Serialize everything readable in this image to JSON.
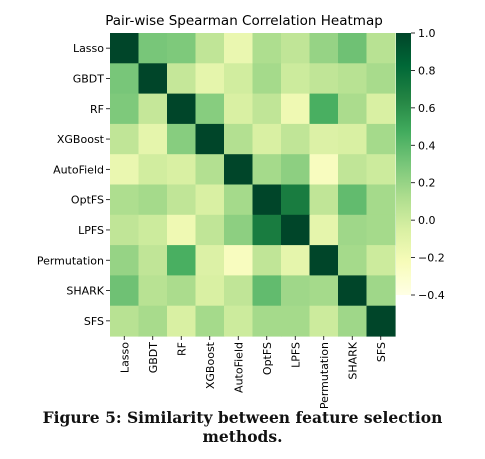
{
  "chart_data": {
    "type": "heatmap",
    "title": "Pair-wise Spearman Correlation Heatmap",
    "rows": [
      "Lasso",
      "GBDT",
      "RF",
      "XGBoost",
      "AutoField",
      "OptFS",
      "LPFS",
      "Permutation",
      "SHARK",
      "SFS"
    ],
    "cols": [
      "Lasso",
      "GBDT",
      "RF",
      "XGBoost",
      "AutoField",
      "OptFS",
      "LPFS",
      "Permutation",
      "SHARK",
      "SFS"
    ],
    "values": [
      [
        1.0,
        0.3,
        0.28,
        0.05,
        -0.15,
        0.12,
        0.05,
        0.2,
        0.33,
        0.08
      ],
      [
        0.3,
        1.0,
        0.03,
        -0.12,
        -0.02,
        0.15,
        0.0,
        0.05,
        0.08,
        0.14
      ],
      [
        0.28,
        0.03,
        1.0,
        0.25,
        -0.05,
        0.05,
        -0.18,
        0.45,
        0.13,
        -0.05
      ],
      [
        0.05,
        -0.12,
        0.25,
        1.0,
        0.1,
        -0.05,
        0.05,
        -0.07,
        -0.05,
        0.15
      ],
      [
        -0.15,
        -0.02,
        -0.05,
        0.1,
        1.0,
        0.15,
        0.23,
        -0.25,
        0.05,
        0.0
      ],
      [
        0.12,
        0.15,
        0.05,
        -0.05,
        0.15,
        1.0,
        0.7,
        0.05,
        0.37,
        0.15
      ],
      [
        0.05,
        0.0,
        -0.18,
        0.05,
        0.23,
        0.7,
        1.0,
        -0.12,
        0.17,
        0.15
      ],
      [
        0.2,
        0.05,
        0.45,
        -0.07,
        -0.25,
        0.05,
        -0.12,
        1.0,
        0.15,
        0.0
      ],
      [
        0.33,
        0.08,
        0.13,
        -0.05,
        0.05,
        0.37,
        0.17,
        0.15,
        1.0,
        0.17
      ],
      [
        0.08,
        0.14,
        -0.05,
        0.15,
        0.0,
        0.15,
        0.15,
        0.0,
        0.17,
        1.0
      ]
    ],
    "colorbar": {
      "min": -0.4,
      "max": 1.0,
      "ticks": [
        "1.0",
        "0.8",
        "0.6",
        "0.4",
        "0.2",
        "0.0",
        "−0.2",
        "−0.4"
      ],
      "tick_values": [
        1.0,
        0.8,
        0.6,
        0.4,
        0.2,
        0.0,
        -0.2,
        -0.4
      ]
    },
    "colormap": "YlGn",
    "colors": [
      "#ffffe5",
      "#f7fcb9",
      "#d9f0a3",
      "#addd8e",
      "#78c679",
      "#41ab5d",
      "#238443",
      "#006837",
      "#004529"
    ],
    "grid": false
  },
  "caption": "Figure 5: Similarity between feature selection methods."
}
